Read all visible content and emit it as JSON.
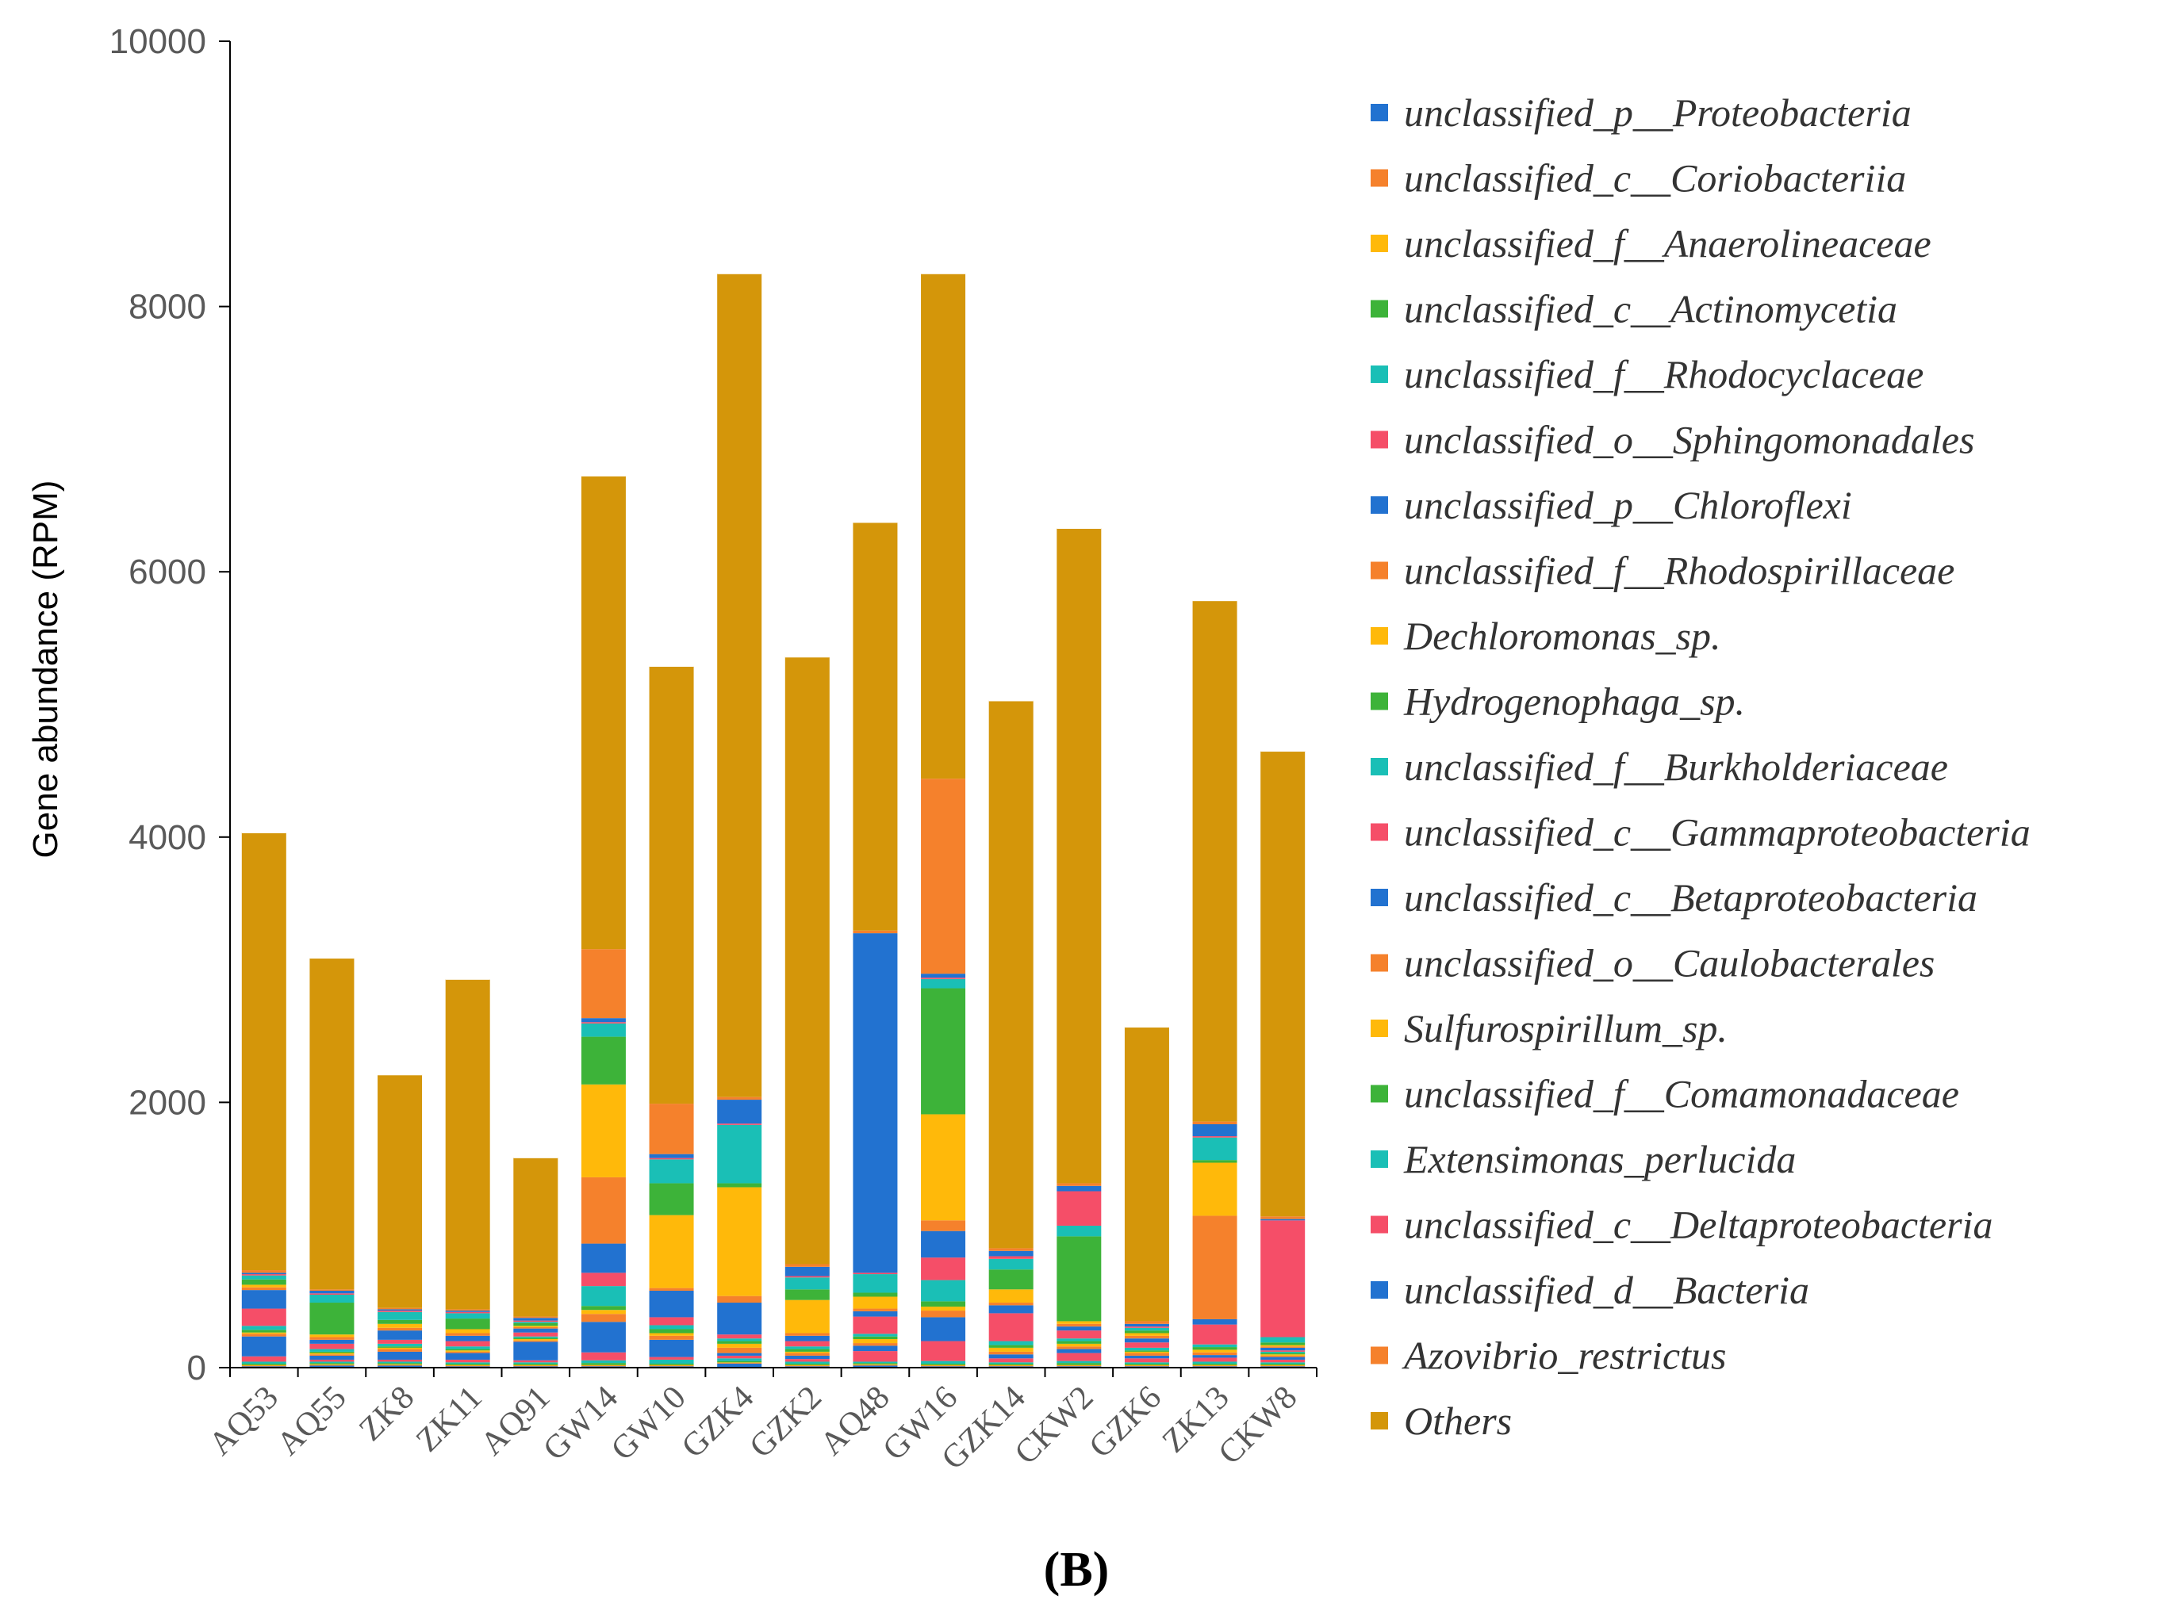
{
  "chart_data": {
    "type": "bar",
    "stacked": true,
    "title": "",
    "xlabel": "",
    "ylabel": "Gene abundance (RPM)",
    "ylim": [
      0,
      10000
    ],
    "yticks": [
      0,
      2000,
      4000,
      6000,
      8000,
      10000
    ],
    "grid": false,
    "legend_position": "right",
    "panel_label": "(B)",
    "categories": [
      "AQ53",
      "AQ55",
      "ZK8",
      "ZK11",
      "AQ91",
      "GW14",
      "GW10",
      "GZK4",
      "GZK2",
      "AQ48",
      "GW16",
      "GZK14",
      "CKW2",
      "GZK6",
      "ZK13",
      "CKW8"
    ],
    "series": [
      {
        "name": "unclassified_p__Proteobacteria",
        "color": "#2272D0",
        "values": [
          10,
          15,
          15,
          10,
          10,
          10,
          10,
          30,
          10,
          15,
          10,
          10,
          10,
          10,
          10,
          10
        ]
      },
      {
        "name": "unclassified_c__Coriobacteriia",
        "color": "#F5812C",
        "values": [
          5,
          5,
          5,
          5,
          5,
          5,
          5,
          5,
          5,
          5,
          5,
          5,
          5,
          5,
          5,
          5
        ]
      },
      {
        "name": "unclassified_f__Anaerolineaceae",
        "color": "#FFB90A",
        "values": [
          5,
          5,
          5,
          5,
          5,
          5,
          5,
          5,
          5,
          5,
          5,
          5,
          5,
          5,
          5,
          5
        ]
      },
      {
        "name": "unclassified_c__Actinomycetia",
        "color": "#3DB339",
        "values": [
          10,
          10,
          10,
          10,
          10,
          15,
          10,
          10,
          10,
          10,
          10,
          10,
          15,
          10,
          10,
          10
        ]
      },
      {
        "name": "unclassified_f__Rhodocyclaceae",
        "color": "#1ABFB6",
        "values": [
          15,
          10,
          10,
          10,
          10,
          20,
          30,
          20,
          15,
          10,
          20,
          10,
          15,
          10,
          15,
          10
        ]
      },
      {
        "name": "unclassified_o__Sphingomonadales",
        "color": "#F54E68",
        "values": [
          40,
          15,
          15,
          20,
          15,
          60,
          20,
          20,
          20,
          80,
          150,
          30,
          60,
          30,
          30,
          20
        ]
      },
      {
        "name": "unclassified_p__Chloroflexi",
        "color": "#2272D0",
        "values": [
          150,
          30,
          60,
          50,
          140,
          230,
          130,
          20,
          25,
          40,
          180,
          30,
          30,
          20,
          20,
          20
        ]
      },
      {
        "name": "unclassified_f__Rhodospirillaceae",
        "color": "#F5812C",
        "values": [
          20,
          10,
          20,
          10,
          10,
          60,
          30,
          40,
          20,
          20,
          50,
          20,
          20,
          20,
          20,
          10
        ]
      },
      {
        "name": "Dechloromonas_sp.",
        "color": "#FFB90A",
        "values": [
          10,
          10,
          10,
          10,
          10,
          30,
          20,
          30,
          10,
          30,
          30,
          30,
          20,
          10,
          20,
          10
        ]
      },
      {
        "name": "Hydrogenophaga_sp.",
        "color": "#3DB339",
        "values": [
          20,
          10,
          10,
          10,
          10,
          30,
          30,
          20,
          20,
          20,
          40,
          20,
          20,
          10,
          20,
          10
        ]
      },
      {
        "name": "unclassified_f__Burkholderiaceae",
        "color": "#1ABFB6",
        "values": [
          30,
          20,
          20,
          20,
          10,
          150,
          30,
          20,
          20,
          20,
          160,
          30,
          20,
          20,
          20,
          10
        ]
      },
      {
        "name": "unclassified_c__Gammaproteobacteria",
        "color": "#F54E68",
        "values": [
          130,
          40,
          30,
          40,
          30,
          100,
          60,
          30,
          40,
          130,
          170,
          210,
          60,
          40,
          150,
          10
        ]
      },
      {
        "name": "unclassified_c__Betaproteobacteria",
        "color": "#2272D0",
        "values": [
          140,
          30,
          70,
          40,
          30,
          220,
          200,
          240,
          40,
          40,
          200,
          60,
          30,
          30,
          40,
          20
        ]
      },
      {
        "name": "unclassified_o__Caulobacterales",
        "color": "#F5812C",
        "values": [
          20,
          20,
          20,
          20,
          10,
          500,
          20,
          50,
          20,
          20,
          80,
          20,
          20,
          20,
          780,
          10
        ]
      },
      {
        "name": "Sulfurospirillum_sp.",
        "color": "#FFB90A",
        "values": [
          20,
          20,
          30,
          30,
          10,
          700,
          550,
          820,
          250,
          90,
          800,
          100,
          20,
          20,
          400,
          10
        ]
      },
      {
        "name": "unclassified_f__Comamonadaceae",
        "color": "#3DB339",
        "values": [
          40,
          240,
          30,
          80,
          20,
          360,
          240,
          30,
          80,
          30,
          950,
          150,
          640,
          20,
          20,
          20
        ]
      },
      {
        "name": "Extensimonas_perlucida",
        "color": "#1ABFB6",
        "values": [
          30,
          60,
          60,
          40,
          10,
          100,
          180,
          440,
          90,
          140,
          70,
          80,
          80,
          20,
          170,
          40
        ]
      },
      {
        "name": "unclassified_c__Deltaproteobacteria",
        "color": "#F54E68",
        "values": [
          10,
          10,
          10,
          10,
          10,
          10,
          10,
          10,
          10,
          10,
          10,
          20,
          260,
          10,
          10,
          880
        ]
      },
      {
        "name": "unclassified_d__Bacteria",
        "color": "#2272D0",
        "values": [
          10,
          20,
          10,
          10,
          20,
          30,
          30,
          180,
          70,
          2560,
          30,
          40,
          40,
          20,
          90,
          10
        ]
      },
      {
        "name": "Azovibrio_restrictus",
        "color": "#F5812C",
        "values": [
          20,
          10,
          10,
          10,
          10,
          520,
          380,
          20,
          20,
          20,
          1470,
          20,
          20,
          20,
          20,
          20
        ]
      },
      {
        "name": "Others",
        "color": "#D4960A",
        "values": [
          3300,
          2500,
          1760,
          2490,
          1200,
          3570,
          3300,
          6210,
          4580,
          3080,
          3810,
          4130,
          4940,
          2220,
          3930,
          3510
        ]
      }
    ]
  }
}
